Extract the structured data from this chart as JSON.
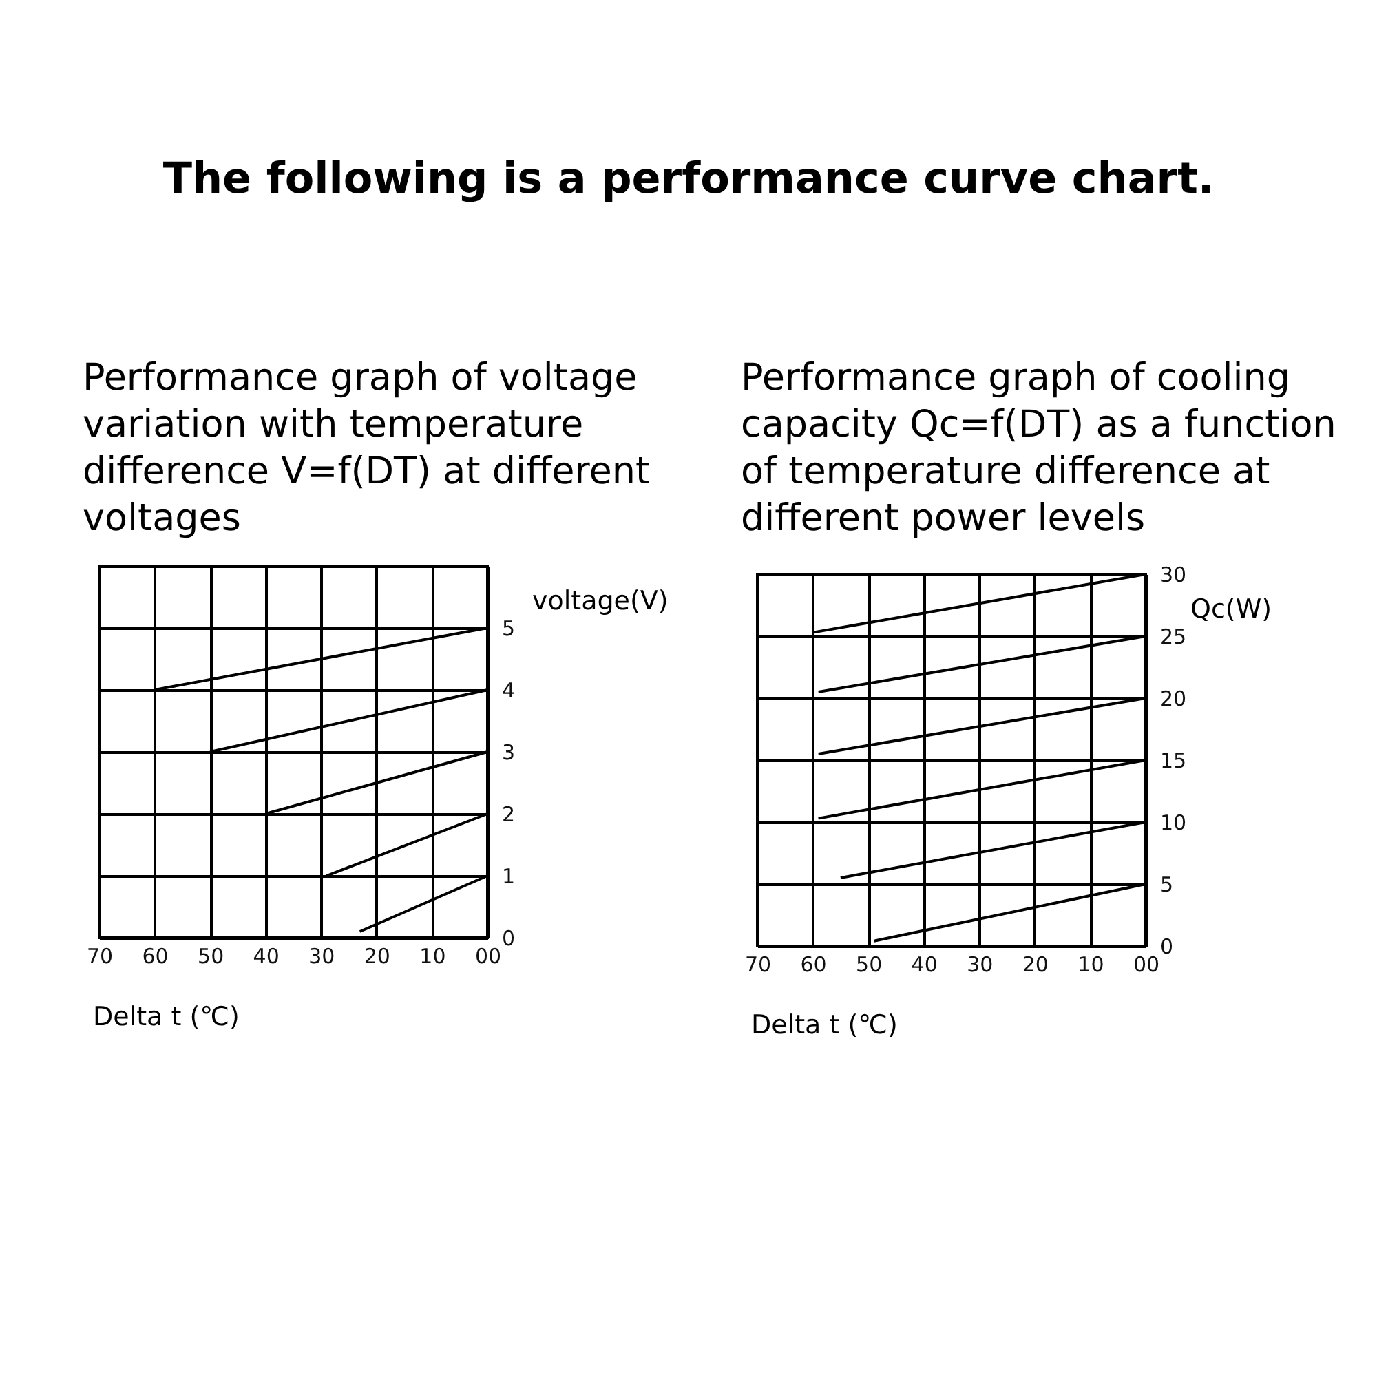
{
  "chart_data": [
    {
      "type": "line",
      "title": "Performance graph of voltage variation with temperature difference V=f(DT) at different voltages",
      "annotations": [
        "The following is a performance curve chart."
      ],
      "xlabel": "Delta t (℃)",
      "ylabel": "voltage(V)",
      "xlim": [
        70,
        0
      ],
      "ylim": [
        0,
        6
      ],
      "xticks": [
        70,
        60,
        50,
        40,
        30,
        20,
        10,
        {
          "value": 0,
          "label": "00"
        }
      ],
      "yticks": [
        0,
        1,
        2,
        3,
        4,
        5,
        {
          "value": 6,
          "label": null
        }
      ],
      "grid": true,
      "series": [
        {
          "color": "#000000",
          "x": [
            60,
            0
          ],
          "values": [
            4,
            5
          ]
        },
        {
          "color": "#000000",
          "x": [
            50,
            0
          ],
          "values": [
            3,
            4
          ]
        },
        {
          "color": "#000000",
          "x": [
            40,
            0
          ],
          "values": [
            2,
            3
          ]
        },
        {
          "color": "#000000",
          "x": [
            29,
            0
          ],
          "values": [
            1,
            2
          ]
        },
        {
          "color": "#000000",
          "x": [
            23,
            0
          ],
          "values": [
            0.1,
            1
          ]
        }
      ]
    },
    {
      "type": "line",
      "title": "Performance graph of cooling capacity Qc=f(DT) as a function of temperature difference at different power levels",
      "xlabel": "Delta t (℃)",
      "ylabel": "Qc(W)",
      "xlim": [
        70,
        0
      ],
      "ylim": [
        0,
        30
      ],
      "xticks": [
        70,
        60,
        50,
        40,
        30,
        20,
        10,
        {
          "value": 0,
          "label": "00"
        }
      ],
      "yticks": [
        0,
        5,
        10,
        15,
        20,
        25,
        30
      ],
      "grid": true,
      "series": [
        {
          "color": "#000000",
          "x": [
            60,
            0
          ],
          "values": [
            25.3,
            30
          ]
        },
        {
          "color": "#000000",
          "x": [
            59,
            0
          ],
          "values": [
            20.5,
            25
          ]
        },
        {
          "color": "#000000",
          "x": [
            59,
            0
          ],
          "values": [
            15.5,
            20
          ]
        },
        {
          "color": "#000000",
          "x": [
            59,
            0
          ],
          "values": [
            10.3,
            15
          ]
        },
        {
          "color": "#000000",
          "x": [
            55,
            0
          ],
          "values": [
            5.5,
            10
          ]
        },
        {
          "color": "#000000",
          "x": [
            49,
            0
          ],
          "values": [
            0.4,
            5
          ]
        }
      ]
    }
  ]
}
